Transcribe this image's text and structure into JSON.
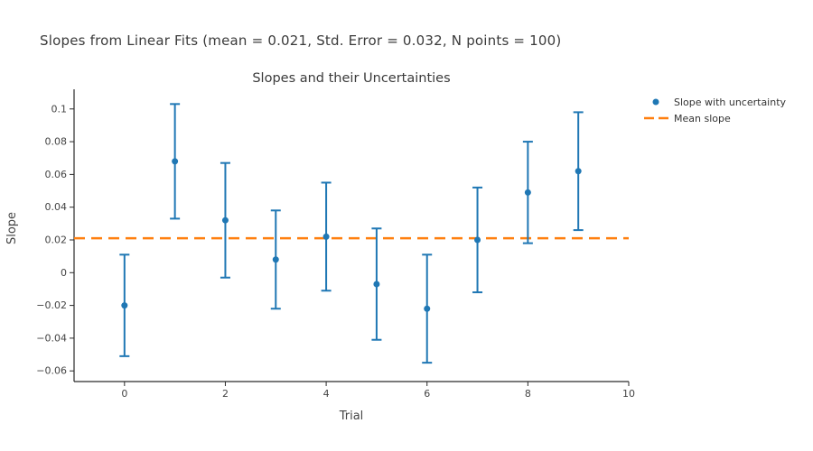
{
  "chart_data": {
    "type": "scatter",
    "suptitle": "Slopes from Linear Fits (mean = 0.021, Std. Error = 0.032, N points = 100)",
    "title": "Slopes and their Uncertainties",
    "xlabel": "Trial",
    "ylabel": "Slope",
    "x": [
      0,
      1,
      2,
      3,
      4,
      5,
      6,
      7,
      8,
      9
    ],
    "y": [
      -0.02,
      0.068,
      0.032,
      0.008,
      0.022,
      -0.007,
      -0.022,
      0.02,
      0.049,
      0.062
    ],
    "yerr": [
      0.031,
      0.035,
      0.035,
      0.03,
      0.033,
      0.034,
      0.033,
      0.032,
      0.031,
      0.036
    ],
    "mean_slope": 0.021,
    "xlim": [
      -1,
      10
    ],
    "ylim": [
      -0.0665,
      0.112
    ],
    "xticks": [
      0,
      2,
      4,
      6,
      8,
      10
    ],
    "yticks": [
      0.1,
      0.08,
      0.06,
      0.04,
      0.02,
      0,
      -0.02,
      -0.04,
      -0.06
    ],
    "grid": false,
    "legend": {
      "position": "top-right-outside",
      "items": [
        {
          "label": "Slope with uncertainty",
          "marker": "dot",
          "color": "#1f77b4"
        },
        {
          "label": "Mean slope",
          "marker": "dashed-line",
          "color": "#ff7f0e"
        }
      ]
    },
    "colors": {
      "points": "#1f77b4",
      "mean_line": "#ff7f0e",
      "axis": "#2a2a2a",
      "tick_text": "#444444",
      "title_text": "#3b3b3b",
      "background": "#ffffff"
    }
  }
}
